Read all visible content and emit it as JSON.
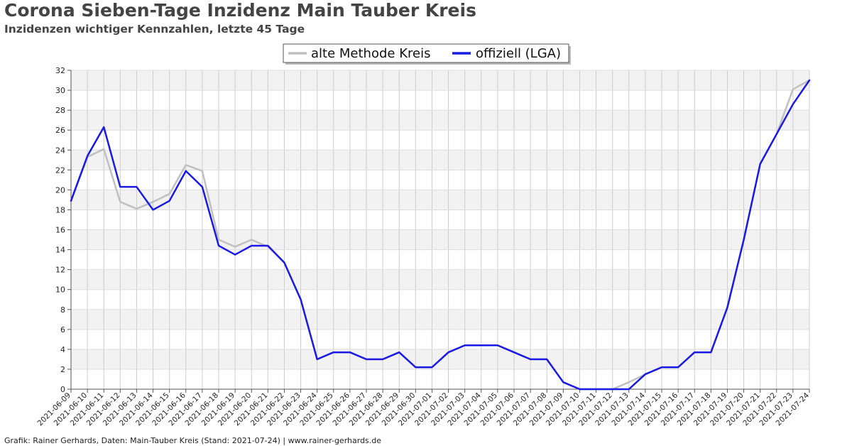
{
  "title": "Corona Sieben-Tage Inzidenz Main Tauber Kreis",
  "subtitle": "Inzidenzen wichtiger Kennzahlen, letzte 45 Tage",
  "footer": "Grafik: Rainer Gerhards, Daten: Main-Tauber Kreis (Stand: 2021-07-24) | www.rainer-gerhards.de",
  "chart_data": {
    "type": "line",
    "title": "Corona Sieben-Tage Inzidenz Main Tauber Kreis",
    "subtitle": "Inzidenzen wichtiger Kennzahlen, letzte 45 Tage",
    "xlabel": "",
    "ylabel": "",
    "ylim": [
      0,
      32
    ],
    "yticks": [
      0,
      2,
      4,
      6,
      8,
      10,
      12,
      14,
      16,
      18,
      20,
      22,
      24,
      26,
      28,
      30,
      32
    ],
    "grid": true,
    "legend_position": "top-center",
    "x": [
      "2021-06-09",
      "2021-06-10",
      "2021-06-11",
      "2021-06-12",
      "2021-06-13",
      "2021-06-14",
      "2021-06-15",
      "2021-06-16",
      "2021-06-17",
      "2021-06-18",
      "2021-06-19",
      "2021-06-20",
      "2021-06-21",
      "2021-06-22",
      "2021-06-23",
      "2021-06-24",
      "2021-06-25",
      "2021-06-26",
      "2021-06-27",
      "2021-06-28",
      "2021-06-29",
      "2021-06-30",
      "2021-07-01",
      "2021-07-02",
      "2021-07-03",
      "2021-07-04",
      "2021-07-05",
      "2021-07-06",
      "2021-07-07",
      "2021-07-08",
      "2021-07-09",
      "2021-07-10",
      "2021-07-11",
      "2021-07-12",
      "2021-07-13",
      "2021-07-14",
      "2021-07-15",
      "2021-07-16",
      "2021-07-17",
      "2021-07-18",
      "2021-07-19",
      "2021-07-20",
      "2021-07-21",
      "2021-07-22",
      "2021-07-23",
      "2021-07-24"
    ],
    "series": [
      {
        "name": "alte Methode Kreis",
        "color": "#c0c0c0",
        "values": [
          18.9,
          23.3,
          24.1,
          18.8,
          18.1,
          18.8,
          19.6,
          22.5,
          21.9,
          15.0,
          14.3,
          15.0,
          14.3,
          12.7,
          9.0,
          3.0,
          3.7,
          3.7,
          3.0,
          3.0,
          3.7,
          2.2,
          2.2,
          3.7,
          4.4,
          4.4,
          4.4,
          3.7,
          3.0,
          3.0,
          0.7,
          0.0,
          0.0,
          0.0,
          0.7,
          1.5,
          2.2,
          2.2,
          3.7,
          3.7,
          8.2,
          15.0,
          22.6,
          25.6,
          30.1,
          31.0
        ]
      },
      {
        "name": "offiziell (LGA)",
        "color": "#1a1ae6",
        "values": [
          18.9,
          23.4,
          26.3,
          20.3,
          20.3,
          18.0,
          18.9,
          21.9,
          20.3,
          14.4,
          13.5,
          14.4,
          14.4,
          12.7,
          9.0,
          3.0,
          3.7,
          3.7,
          3.0,
          3.0,
          3.7,
          2.2,
          2.2,
          3.7,
          4.4,
          4.4,
          4.4,
          3.7,
          3.0,
          3.0,
          0.7,
          0.0,
          0.0,
          0.0,
          0.0,
          1.5,
          2.2,
          2.2,
          3.7,
          3.7,
          8.2,
          15.0,
          22.6,
          25.6,
          28.6,
          31.0
        ]
      }
    ]
  }
}
